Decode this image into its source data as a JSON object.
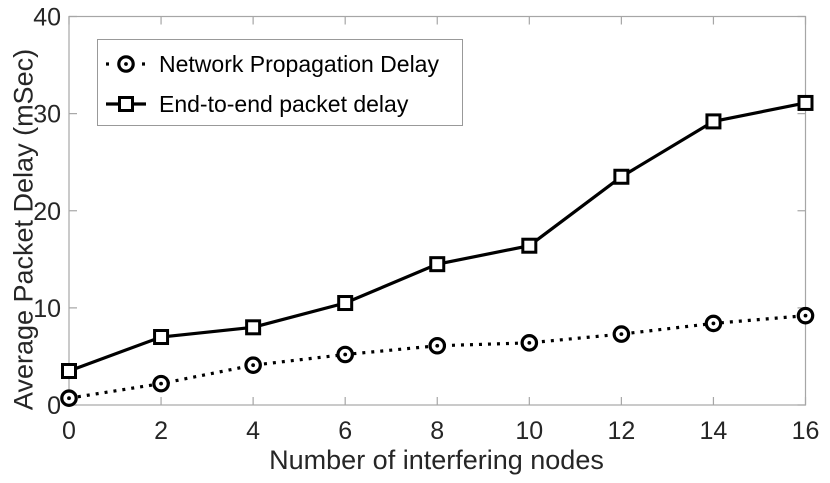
{
  "chart_data": {
    "type": "line",
    "title": "",
    "xlabel": "Number of interfering nodes",
    "ylabel": "Average Packet Delay (mSec)",
    "x": [
      0,
      2,
      4,
      6,
      8,
      10,
      12,
      14,
      16
    ],
    "xlim": [
      0,
      16
    ],
    "ylim": [
      0,
      40
    ],
    "x_ticks": [
      0,
      2,
      4,
      6,
      8,
      10,
      12,
      14,
      16
    ],
    "y_ticks": [
      0,
      10,
      20,
      30,
      40
    ],
    "grid": false,
    "legend_position": "top-left-inside",
    "series": [
      {
        "name": "Network Propagation Delay",
        "line": "dotted",
        "marker": "circle",
        "color": "#000000",
        "values": [
          0.7,
          2.2,
          4.1,
          5.2,
          6.1,
          6.4,
          7.3,
          8.4,
          9.2
        ]
      },
      {
        "name": "End-to-end packet delay",
        "line": "solid",
        "marker": "square",
        "color": "#000000",
        "values": [
          3.5,
          7.0,
          8.0,
          10.5,
          14.5,
          16.4,
          23.5,
          29.2,
          31.1
        ]
      }
    ]
  },
  "styles": {
    "background": "#ffffff",
    "spine_color": "#a6a6a6",
    "tick_label_color": "#262626",
    "series_color": "#000000",
    "legend_border_color": "#999999"
  }
}
